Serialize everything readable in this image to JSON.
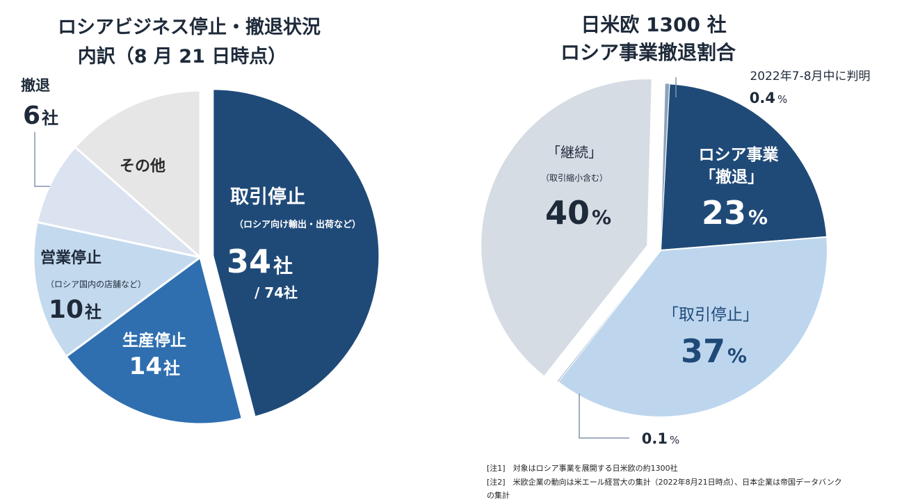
{
  "chart_data": [
    {
      "type": "pie",
      "title": "ロシアビジネス停止・撤退状況",
      "subtitle": "内訳（8 月 21 日時点）",
      "total_label": "/ 74社",
      "unit": "社",
      "slices": [
        {
          "label": "取引停止",
          "sublabel": "（ロシア向け輸出・出荷など）",
          "value": 34,
          "value_text": "34",
          "color": "#1f4a78"
        },
        {
          "label": "生産停止",
          "sublabel": "",
          "value": 14,
          "value_text": "14",
          "color": "#2f6fb0"
        },
        {
          "label": "営業停止",
          "sublabel": "（ロシア国内の店舗など）",
          "value": 10,
          "value_text": "10",
          "color": "#c3d9ee"
        },
        {
          "label": "",
          "sublabel": "",
          "value": 6,
          "value_text": "",
          "color": "#dbe3f1"
        },
        {
          "label": "その他",
          "sublabel": "",
          "value": 10,
          "value_text": "",
          "color": "#e7e6e6"
        }
      ],
      "callout": {
        "label": "撤退",
        "value_text": "6"
      }
    },
    {
      "type": "pie",
      "title": "日米欧 1300 社",
      "subtitle": "ロシア事業撤退割合",
      "unit": "%",
      "slices": [
        {
          "label": "ロシア事業",
          "label2": "「撤退」",
          "value": 23,
          "value_text": "23",
          "color": "#1f4a78"
        },
        {
          "label": "「取引停止」",
          "value": 37,
          "value_text": "37",
          "color": "#bdd6ee"
        },
        {
          "label": "",
          "value": 0.1,
          "value_text": "0.1",
          "color": "#9fb3c8"
        },
        {
          "label": "「継続」",
          "sublabel": "（取引縮小含む）",
          "value": 40,
          "value_text": "40",
          "color": "#d6dce4"
        },
        {
          "label": "2022年7-8月中に判明",
          "value": 0.4,
          "value_text": "0.4",
          "color": "#8aa2bb"
        }
      ]
    }
  ],
  "notes": [
    "[注1]　対象はロシア事業を展開する日米欧の約1300社",
    "[注2]　米欧企業の動向は米エール経営大の集計（2022年8月21日時点）、日本企業は帝国データバンク",
    "の集計"
  ]
}
